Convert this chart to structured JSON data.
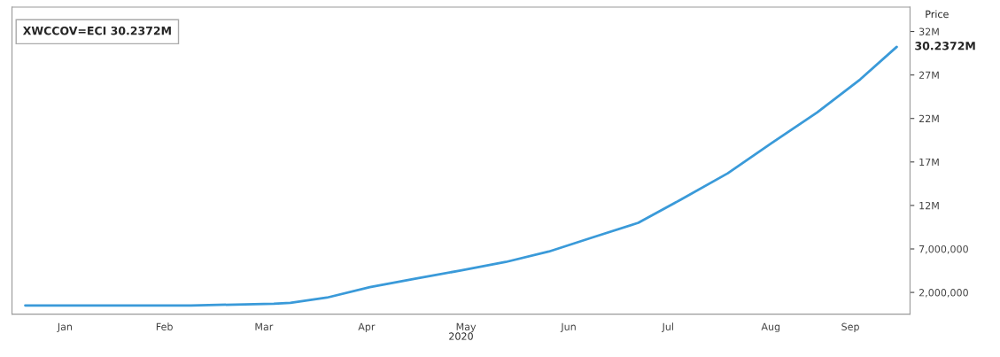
{
  "chart_data": {
    "type": "line",
    "ylabel": "Price",
    "xlabel": "2020",
    "x": [
      "2020-01-03",
      "2020-02-22",
      "2020-03-18",
      "2020-03-23",
      "2020-04-03",
      "2020-04-16",
      "2020-04-30",
      "2020-05-13",
      "2020-05-27",
      "2020-06-09",
      "2020-06-22",
      "2020-07-06",
      "2020-07-19",
      "2020-08-02",
      "2020-08-15",
      "2020-08-29",
      "2020-09-11",
      "2020-09-22"
    ],
    "series": [
      {
        "color": "#3a9ad9",
        "values": [
          500000,
          500000,
          700000,
          800000,
          1400000,
          2600000,
          3600000,
          4500000,
          5500000,
          6700000,
          8300000,
          10000000,
          12700000,
          15700000,
          19100000,
          22700000,
          26500000,
          30237200
        ]
      }
    ],
    "ylim": [
      -500000,
      34800000
    ],
    "yticks": [
      {
        "value": 2000000,
        "label": "2,000,000"
      },
      {
        "value": 7000000,
        "label": "7,000,000"
      },
      {
        "value": 12000000,
        "label": "12M"
      },
      {
        "value": 17000000,
        "label": "17M"
      },
      {
        "value": 22000000,
        "label": "22M"
      },
      {
        "value": 27000000,
        "label": "27M"
      },
      {
        "value": 32000000,
        "label": "32M"
      }
    ],
    "xlim": [
      "2019-12-30",
      "2020-09-26"
    ],
    "xticks": [
      {
        "value": "2020-01-15",
        "label": "Jan"
      },
      {
        "value": "2020-02-14",
        "label": "Feb"
      },
      {
        "value": "2020-03-15",
        "label": "Mar"
      },
      {
        "value": "2020-04-15",
        "label": "Apr"
      },
      {
        "value": "2020-05-15",
        "label": "May"
      },
      {
        "value": "2020-06-15",
        "label": "Jun"
      },
      {
        "value": "2020-07-15",
        "label": "Jul"
      },
      {
        "value": "2020-08-15",
        "label": "Aug"
      },
      {
        "value": "2020-09-08",
        "label": "Sep"
      }
    ],
    "annotations": [
      "XWCCOV=ECI 30.2372M",
      {
        "text": "30.2372M",
        "x": "2020-09-22",
        "y": 30237200
      }
    ],
    "line_style": "solid",
    "marker": "none"
  }
}
